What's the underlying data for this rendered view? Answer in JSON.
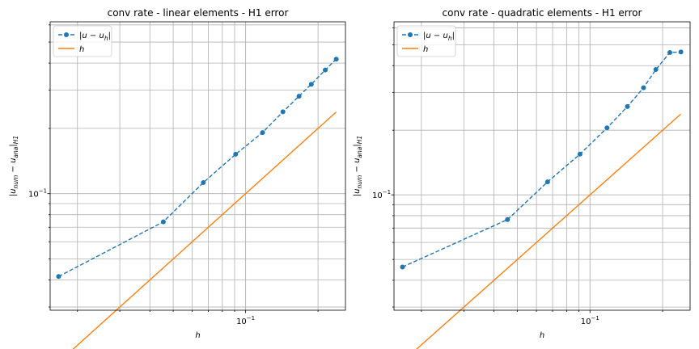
{
  "chart_data": [
    {
      "type": "line",
      "title": "conv rate - linear elements - H1 error",
      "xlabel": "h",
      "ylabel": "|u_num - u_ana|_H1",
      "xscale": "log",
      "yscale": "log",
      "xlim": [
        0.0154,
        0.26
      ],
      "ylim": [
        0.029,
        0.62
      ],
      "x_ticks": [
        {
          "value": 0.1,
          "label": "10^-1"
        }
      ],
      "y_ticks": [
        {
          "value": 0.1,
          "label": "10^-1"
        }
      ],
      "grid": "both (major and minor)",
      "legend_position": "upper left",
      "series": [
        {
          "name": "|u - u_h|",
          "style": "dashed line with circle markers",
          "color": "#1f77b4",
          "x": [
            0.0167,
            0.0455,
            0.0667,
            0.0909,
            0.1176,
            0.1429,
            0.1667,
            0.1875,
            0.2143,
            0.2381
          ],
          "y": [
            0.0415,
            0.0741,
            0.1125,
            0.152,
            0.1913,
            0.2385,
            0.2813,
            0.3194,
            0.3718,
            0.417
          ]
        },
        {
          "name": "h",
          "style": "solid line",
          "color": "#ff7f0e",
          "x": [
            0.0167,
            0.2381
          ],
          "y": [
            0.0167,
            0.2381
          ]
        }
      ]
    },
    {
      "type": "line",
      "title": "conv rate - quadratic elements - H1 error",
      "xlabel": "h",
      "ylabel": "|u_num - u_ana|_H1",
      "xscale": "log",
      "yscale": "log",
      "xlim": [
        0.0154,
        0.26
      ],
      "ylim": [
        0.029,
        0.64
      ],
      "x_ticks": [
        {
          "value": 0.1,
          "label": "10^-1"
        }
      ],
      "y_ticks": [
        {
          "value": 0.1,
          "label": "10^-1"
        }
      ],
      "grid": "both (major and minor)",
      "legend_position": "upper left",
      "series": [
        {
          "name": "|u - u_h|",
          "style": "dashed line with circle markers",
          "color": "#1f77b4",
          "x": [
            0.0167,
            0.0455,
            0.0667,
            0.0909,
            0.1176,
            0.1429,
            0.1667,
            0.1875,
            0.2143,
            0.2381
          ],
          "y": [
            0.0461,
            0.0767,
            0.1149,
            0.1548,
            0.2051,
            0.2579,
            0.3154,
            0.3836,
            0.4605,
            0.4631
          ]
        },
        {
          "name": "h",
          "style": "solid line",
          "color": "#ff7f0e",
          "x": [
            0.0167,
            0.2381
          ],
          "y": [
            0.0167,
            0.2381
          ]
        }
      ]
    }
  ]
}
